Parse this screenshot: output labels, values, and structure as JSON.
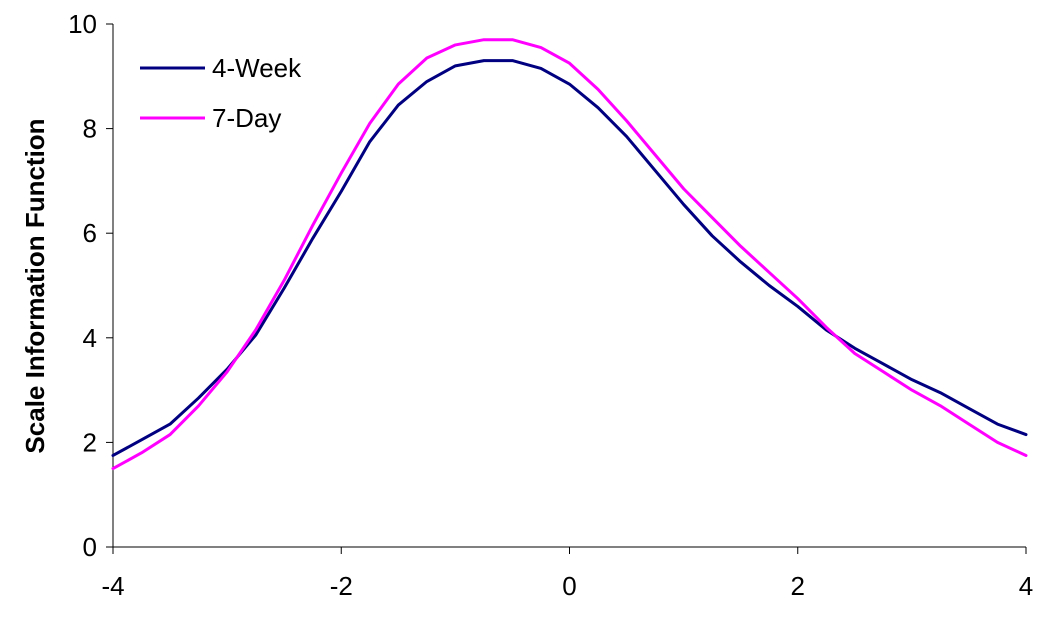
{
  "chart_data": {
    "type": "line",
    "title": "",
    "xlabel": "",
    "ylabel": "Scale Information Function",
    "xlim": [
      -4,
      4
    ],
    "ylim": [
      0,
      10
    ],
    "x_ticks": [
      -4,
      -2,
      0,
      2,
      4
    ],
    "y_ticks": [
      0,
      2,
      4,
      6,
      8,
      10
    ],
    "grid": false,
    "legend_position": "top-left",
    "x": [
      -4.0,
      -3.75,
      -3.5,
      -3.25,
      -3.0,
      -2.75,
      -2.5,
      -2.25,
      -2.0,
      -1.75,
      -1.5,
      -1.25,
      -1.0,
      -0.75,
      -0.5,
      -0.25,
      0.0,
      0.25,
      0.5,
      0.75,
      1.0,
      1.25,
      1.5,
      1.75,
      2.0,
      2.25,
      2.5,
      2.75,
      3.0,
      3.25,
      3.5,
      3.75,
      4.0
    ],
    "series": [
      {
        "name": "4-Week",
        "color": "#000080",
        "values": [
          1.75,
          2.05,
          2.35,
          2.85,
          3.4,
          4.05,
          4.95,
          5.9,
          6.8,
          7.75,
          8.45,
          8.9,
          9.2,
          9.3,
          9.3,
          9.15,
          8.85,
          8.4,
          7.85,
          7.2,
          6.55,
          5.95,
          5.45,
          5.0,
          4.6,
          4.15,
          3.8,
          3.5,
          3.2,
          2.95,
          2.65,
          2.35,
          2.15
        ]
      },
      {
        "name": "7-Day",
        "color": "#FF00FF",
        "values": [
          1.5,
          1.8,
          2.15,
          2.7,
          3.35,
          4.15,
          5.1,
          6.15,
          7.15,
          8.1,
          8.85,
          9.35,
          9.6,
          9.7,
          9.7,
          9.55,
          9.25,
          8.75,
          8.15,
          7.5,
          6.85,
          6.3,
          5.75,
          5.25,
          4.75,
          4.2,
          3.7,
          3.35,
          3.0,
          2.7,
          2.35,
          2.0,
          1.75
        ]
      }
    ]
  }
}
